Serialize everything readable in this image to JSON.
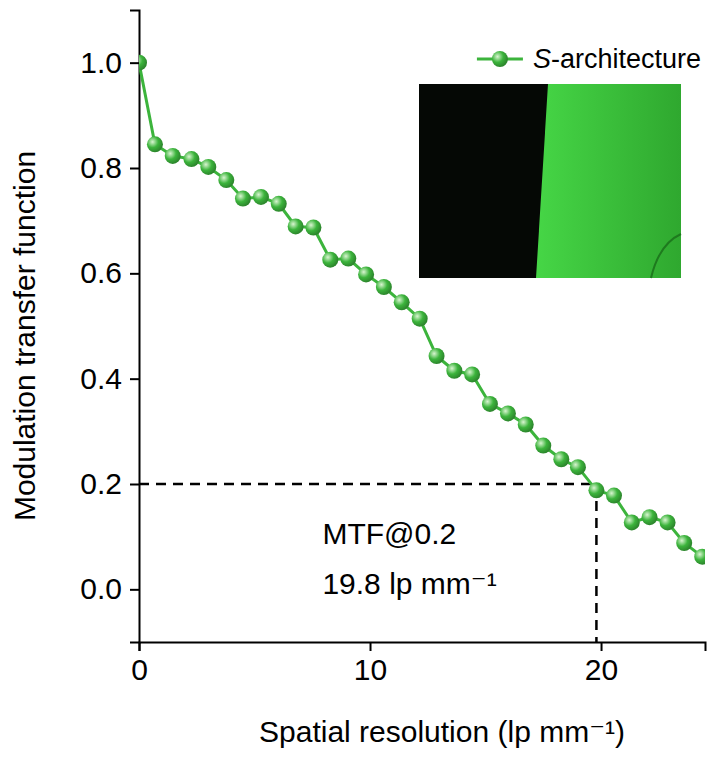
{
  "chart_data": {
    "type": "line",
    "x_label": "Spatial resolution (lp mm⁻¹)",
    "y_label": "Modulation transfer function",
    "x": [
      0,
      0.69,
      1.46,
      2.27,
      3.0,
      3.78,
      4.5,
      5.28,
      6.05,
      6.78,
      7.55,
      8.28,
      9.06,
      9.83,
      10.6,
      11.37,
      12.15,
      12.88,
      13.65,
      14.42,
      15.19,
      15.97,
      16.74,
      17.5,
      18.28,
      19.0,
      19.8,
      20.56,
      21.33,
      22.1,
      22.88,
      23.6,
      24.38
    ],
    "series": [
      {
        "name": "S-architecture",
        "color": "#3cb43c",
        "marker": "circle",
        "line_style": "solid",
        "values": [
          1.0,
          0.845,
          0.823,
          0.817,
          0.802,
          0.777,
          0.742,
          0.745,
          0.732,
          0.689,
          0.687,
          0.626,
          0.628,
          0.598,
          0.574,
          0.545,
          0.514,
          0.443,
          0.415,
          0.408,
          0.352,
          0.334,
          0.313,
          0.273,
          0.247,
          0.232,
          0.188,
          0.178,
          0.127,
          0.137,
          0.127,
          0.088,
          0.062
        ]
      }
    ],
    "xlim": [
      0,
      24.5
    ],
    "xticks": [
      0,
      10,
      20
    ],
    "ylim": [
      -0.1,
      1.1
    ],
    "yticks": [
      {
        "value": 0,
        "label": "0.0"
      },
      {
        "value": 0.2,
        "label": "0.2"
      },
      {
        "value": 0.4,
        "label": "0.4"
      },
      {
        "value": 0.6,
        "label": "0.6"
      },
      {
        "value": 0.8,
        "label": "0.8"
      },
      {
        "value": 1.0,
        "label": "1.0"
      }
    ],
    "reference_line": {
      "x": 19.8,
      "y": 0.2
    },
    "annotations": [
      "MTF@0.2",
      "19.8 lp mm⁻¹"
    ],
    "legend": "upper right",
    "grid": false
  }
}
